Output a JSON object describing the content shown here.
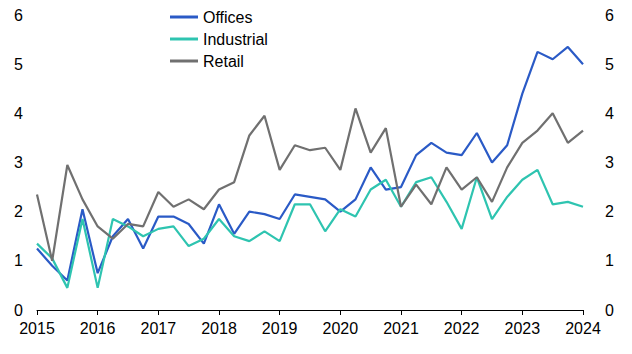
{
  "chart_data": {
    "type": "line",
    "x": [
      2015,
      2015.25,
      2015.5,
      2015.75,
      2016,
      2016.25,
      2016.5,
      2016.75,
      2017,
      2017.25,
      2017.5,
      2017.75,
      2018,
      2018.25,
      2018.5,
      2018.75,
      2019,
      2019.25,
      2019.5,
      2019.75,
      2020,
      2020.25,
      2020.5,
      2020.75,
      2021,
      2021.25,
      2021.5,
      2021.75,
      2022,
      2022.25,
      2022.5,
      2022.75,
      2023,
      2023.25,
      2023.5,
      2023.75,
      2024
    ],
    "series": [
      {
        "name": "Offices",
        "color": "#2a5ac6",
        "values": [
          1.25,
          0.9,
          0.6,
          2.05,
          0.75,
          1.5,
          1.85,
          1.25,
          1.9,
          1.9,
          1.75,
          1.35,
          2.15,
          1.55,
          2.0,
          1.95,
          1.85,
          2.35,
          2.3,
          2.25,
          2.0,
          2.25,
          2.9,
          2.45,
          2.5,
          3.15,
          3.4,
          3.2,
          3.15,
          3.6,
          3.0,
          3.35,
          4.4,
          5.25,
          5.1,
          5.35,
          5.0
        ]
      },
      {
        "name": "Industrial",
        "color": "#2ec4b0",
        "values": [
          1.35,
          1.05,
          0.45,
          1.85,
          0.45,
          1.85,
          1.7,
          1.5,
          1.65,
          1.7,
          1.3,
          1.45,
          1.85,
          1.5,
          1.4,
          1.6,
          1.4,
          2.15,
          2.15,
          1.6,
          2.05,
          1.9,
          2.45,
          2.65,
          2.1,
          2.6,
          2.7,
          2.2,
          1.65,
          2.7,
          1.85,
          2.3,
          2.65,
          2.85,
          2.15,
          2.2,
          2.1
        ]
      },
      {
        "name": "Retail",
        "color": "#707070",
        "values": [
          2.35,
          1.0,
          2.95,
          2.25,
          1.7,
          1.45,
          1.75,
          1.7,
          2.4,
          2.1,
          2.25,
          2.05,
          2.45,
          2.6,
          3.55,
          3.95,
          2.85,
          3.35,
          3.25,
          3.3,
          2.85,
          4.1,
          3.2,
          3.7,
          2.1,
          2.55,
          2.15,
          2.9,
          2.45,
          2.7,
          2.2,
          2.9,
          3.4,
          3.65,
          4.0,
          3.4,
          3.65
        ]
      }
    ],
    "xlim": [
      2015,
      2024
    ],
    "xticks": [
      2015,
      2016,
      2017,
      2018,
      2019,
      2020,
      2021,
      2022,
      2023,
      2024
    ],
    "ylim": [
      0,
      6
    ],
    "yticks": [
      0,
      1,
      2,
      3,
      4,
      5,
      6
    ],
    "y2lim": [
      0,
      6
    ],
    "y2ticks": [
      0,
      1,
      2,
      3,
      4,
      5,
      6
    ],
    "grid": false,
    "legend": "top"
  }
}
